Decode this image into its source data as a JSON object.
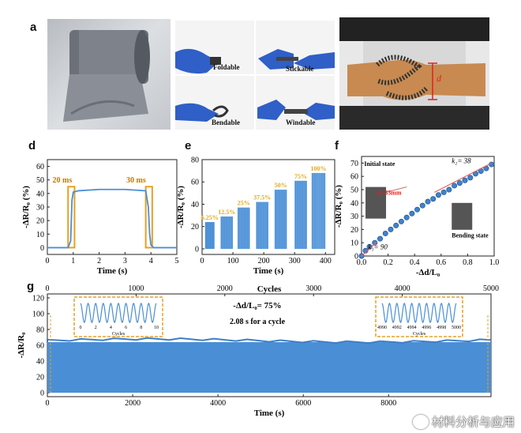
{
  "panels": {
    "a": "a",
    "b": "b",
    "c": "c",
    "d": "d",
    "e": "e",
    "f": "f",
    "g": "g"
  },
  "photo_b": {
    "foldable": "Foldable",
    "stickable": "Stickable",
    "bendable": "Bendable",
    "windable": "Windable"
  },
  "photo_c": {
    "d_label": "d"
  },
  "colors": {
    "signal": "#4a8fd6",
    "box": "#e8a020",
    "accent": "#e0aa18",
    "fit_line": "#e06060",
    "photo_c_bg": "#c88a50"
  },
  "chart_data": [
    {
      "id": "d",
      "type": "line",
      "xlabel": "Time (s)",
      "ylabel": "-ΔR/R₀ (%)",
      "xlim": [
        0,
        5
      ],
      "ylim": [
        -5,
        65
      ],
      "xticks": [
        "0",
        "1",
        "2",
        "3",
        "4",
        "5"
      ],
      "yticks": [
        "0",
        "10",
        "20",
        "30",
        "40",
        "50",
        "60"
      ],
      "annotations": [
        "20 ms",
        "30 ms"
      ],
      "series": [
        {
          "x": [
            0,
            0.8,
            0.9,
            0.95,
            1.0,
            1.2,
            2.0,
            3.0,
            3.8,
            3.9,
            3.95,
            4.0,
            4.1,
            5.0
          ],
          "y": [
            0,
            0,
            5,
            35,
            41,
            42,
            43,
            43,
            42,
            30,
            10,
            2,
            0,
            0
          ]
        }
      ]
    },
    {
      "id": "e",
      "type": "area",
      "xlabel": "Time (s)",
      "ylabel": "-ΔR/R₀ (%)",
      "xlim": [
        0,
        430
      ],
      "ylim": [
        -5,
        80
      ],
      "xticks": [
        "0",
        "100",
        "200",
        "300",
        "400"
      ],
      "yticks": [
        "0",
        "20",
        "40",
        "60",
        "80"
      ],
      "segments": [
        {
          "label": "6.25%",
          "x": [
            10,
            40
          ],
          "ymax": 24
        },
        {
          "label": "12.5%",
          "x": [
            60,
            100
          ],
          "ymax": 29
        },
        {
          "label": "25%",
          "x": [
            115,
            155
          ],
          "ymax": 37
        },
        {
          "label": "37.5%",
          "x": [
            175,
            215
          ],
          "ymax": 42
        },
        {
          "label": "50%",
          "x": [
            235,
            275
          ],
          "ymax": 53
        },
        {
          "label": "75%",
          "x": [
            300,
            340
          ],
          "ymax": 61
        },
        {
          "label": "100%",
          "x": [
            355,
            400
          ],
          "ymax": 68
        }
      ]
    },
    {
      "id": "f",
      "type": "scatter",
      "xlabel": "-Δd/L₀",
      "ylabel": "-ΔR/R₀ (%)",
      "xlim": [
        0,
        1.0
      ],
      "ylim": [
        0,
        75
      ],
      "xticks": [
        "0.0",
        "0.2",
        "0.4",
        "0.6",
        "0.8",
        "1.0"
      ],
      "yticks": [
        "0",
        "10",
        "20",
        "30",
        "40",
        "50",
        "60",
        "70"
      ],
      "annotations": {
        "initial": "Initial state",
        "d": "d=33mm",
        "k1": "k₁= 90",
        "k2": "k₂= 38",
        "bending": "Bending state"
      },
      "series": [
        {
          "x": [
            0.0,
            0.03,
            0.06,
            0.1,
            0.14,
            0.18,
            0.22,
            0.26,
            0.3,
            0.34,
            0.38,
            0.42,
            0.46,
            0.5,
            0.54,
            0.58,
            0.62,
            0.66,
            0.7,
            0.74,
            0.78,
            0.82,
            0.86,
            0.9,
            0.94,
            0.98
          ],
          "y": [
            0,
            4,
            7,
            10,
            13,
            17,
            20,
            23,
            26,
            29,
            32,
            35,
            38,
            41,
            43,
            46,
            48,
            50,
            53,
            55,
            57,
            59,
            62,
            64,
            66,
            69
          ]
        }
      ]
    },
    {
      "id": "g",
      "type": "area",
      "xlabel": "Time (s)",
      "ylabel": "-ΔR/R₀",
      "x2label": "Cycles",
      "xlim": [
        0,
        10400
      ],
      "ylim": [
        -5,
        125
      ],
      "x2lim": [
        0,
        5000
      ],
      "xticks": [
        "0",
        "2000",
        "4000",
        "6000",
        "8000"
      ],
      "x2ticks": [
        "0",
        "1000",
        "2000",
        "3000",
        "4000",
        "5000"
      ],
      "yticks": [
        "0",
        "20",
        "40",
        "60",
        "80",
        "100",
        "120"
      ],
      "annotations": [
        "-Δd/L₀= 75%",
        "2.08 s for a cycle"
      ],
      "band": {
        "min": 0,
        "max": 64
      },
      "inset1": {
        "xlabel": "Cycles",
        "xticks": [
          "0",
          "2",
          "4",
          "6",
          "8",
          "10"
        ]
      },
      "inset2": {
        "xlabel": "Cycles",
        "xticks": [
          "4990",
          "4992",
          "4994",
          "4996",
          "4998",
          "5000"
        ]
      }
    }
  ],
  "watermark": "材料分析与应用"
}
